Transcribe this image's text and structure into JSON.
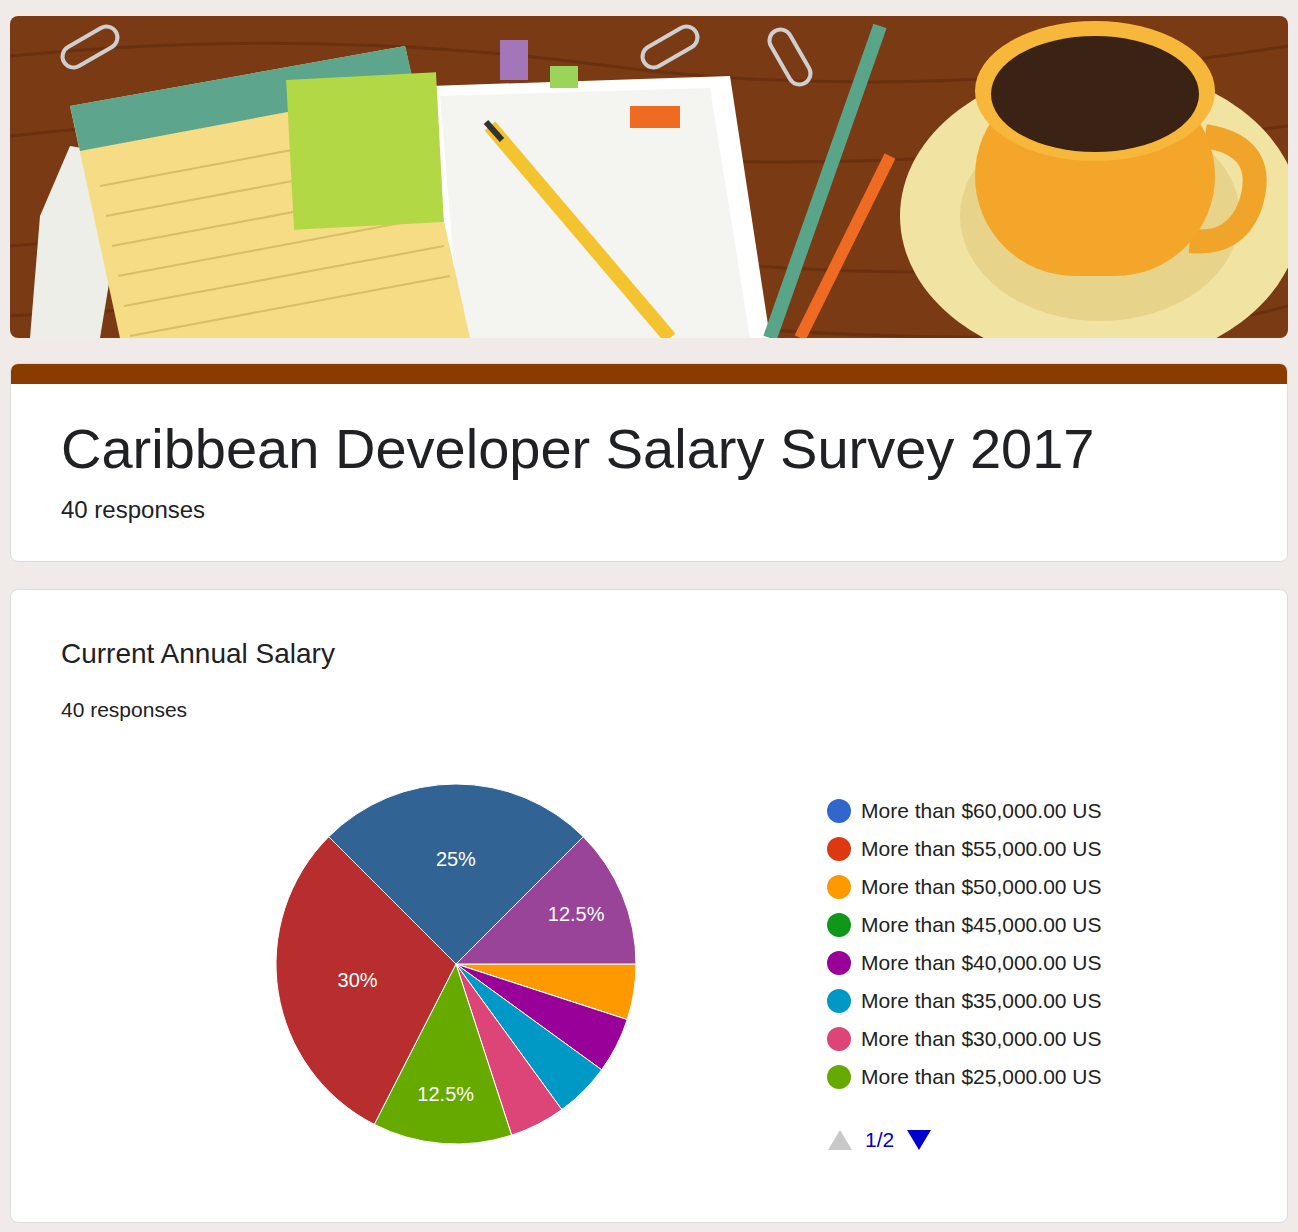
{
  "form": {
    "title": "Caribbean Developer Salary Survey 2017",
    "responses": "40 responses",
    "legend_pager": "1/2"
  },
  "chart_data": {
    "type": "pie",
    "title": "Current Annual Salary",
    "subtitle": "40 responses",
    "categories": [
      "More than $60,000.00 US",
      "More than $55,000.00 US",
      "More than $50,000.00 US",
      "More than $45,000.00 US",
      "More than $40,000.00 US",
      "More than $35,000.00 US",
      "More than $30,000.00 US",
      "More than $25,000.00 US",
      null,
      null,
      null
    ],
    "values": [
      0,
      0,
      5,
      0,
      5,
      5,
      5,
      12.5,
      30,
      25,
      12.5
    ],
    "value_labels": [
      null,
      null,
      null,
      null,
      null,
      null,
      null,
      "12.5%",
      "30%",
      "25%",
      "12.5%"
    ],
    "colors": [
      "#3366cc",
      "#dc3912",
      "#ff9900",
      "#109618",
      "#990099",
      "#0099c6",
      "#dd4477",
      "#66aa00",
      "#b82e2e",
      "#316395",
      "#994499"
    ],
    "legend": "right",
    "data_labels": true
  }
}
